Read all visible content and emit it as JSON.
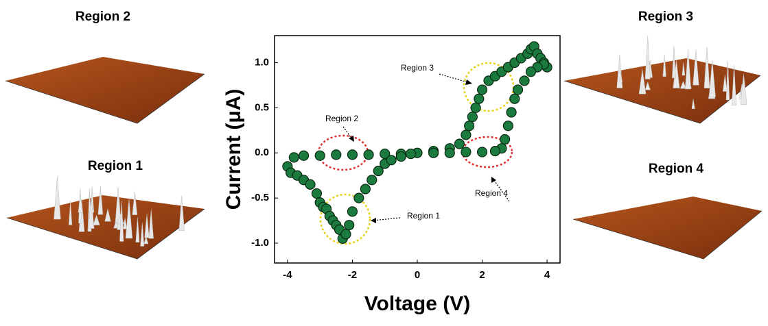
{
  "chart_data": {
    "type": "scatter",
    "x_label": "Voltage (V)",
    "y_label": "Current (μA)",
    "xlim": [
      -4.4,
      4.4
    ],
    "ylim": [
      -1.22,
      1.3
    ],
    "xticks": [
      -4,
      -2,
      0,
      2,
      4
    ],
    "yticks": [
      {
        "value": -1,
        "label": "-1.0"
      },
      {
        "value": -0.5,
        "label": "-0.5"
      },
      {
        "value": 0,
        "label": "0.0"
      },
      {
        "value": 0.5,
        "label": "0.5"
      },
      {
        "value": 1,
        "label": "1.0"
      }
    ],
    "color": "#1b7a3e",
    "x": [
      0,
      0.5,
      1.0,
      1.3,
      1.5,
      1.6,
      1.7,
      1.8,
      1.9,
      2.0,
      2.2,
      2.4,
      2.6,
      2.8,
      3.0,
      3.2,
      3.4,
      3.5,
      3.6,
      3.7,
      3.8,
      3.9,
      4.0,
      3.9,
      3.7,
      3.5,
      3.3,
      3.1,
      3.0,
      2.9,
      2.8,
      2.7,
      2.6,
      2.4,
      2.0,
      1.5,
      1.0,
      0.5,
      -0.5,
      -1.0,
      -1.5,
      -2.0,
      -2.5,
      -3.0,
      -3.5,
      -3.8,
      -4.0,
      -3.9,
      -3.7,
      -3.5,
      -3.3,
      -3.1,
      -3.0,
      -2.9,
      -2.8,
      -2.7,
      -2.6,
      -2.5,
      -2.4,
      -2.3,
      -2.2,
      -2.1,
      -2.0,
      -1.8,
      -1.6,
      -1.4,
      -1.2,
      -1.0,
      -0.8,
      -0.5,
      -0.2
    ],
    "values": [
      0.0,
      0.02,
      0.05,
      0.1,
      0.2,
      0.3,
      0.4,
      0.5,
      0.6,
      0.7,
      0.8,
      0.85,
      0.9,
      0.95,
      1.0,
      1.05,
      1.1,
      1.15,
      1.18,
      1.1,
      1.05,
      1.0,
      0.95,
      0.98,
      0.95,
      0.9,
      0.8,
      0.7,
      0.6,
      0.45,
      0.3,
      0.15,
      0.05,
      0.02,
      0.01,
      0.01,
      0.0,
      0.0,
      -0.01,
      -0.01,
      -0.02,
      -0.02,
      -0.02,
      -0.03,
      -0.03,
      -0.05,
      -0.15,
      -0.22,
      -0.25,
      -0.3,
      -0.35,
      -0.45,
      -0.55,
      -0.6,
      -0.62,
      -0.7,
      -0.75,
      -0.8,
      -0.85,
      -0.95,
      -0.9,
      -0.8,
      -0.65,
      -0.5,
      -0.4,
      -0.3,
      -0.2,
      -0.12,
      -0.08,
      -0.04,
      -0.01
    ],
    "annotations": [
      "Region 3",
      "Region 2",
      "Region 1",
      "Region 4"
    ],
    "panels": [
      "Region 2",
      "Region 1",
      "Region 3",
      "Region 4"
    ]
  }
}
